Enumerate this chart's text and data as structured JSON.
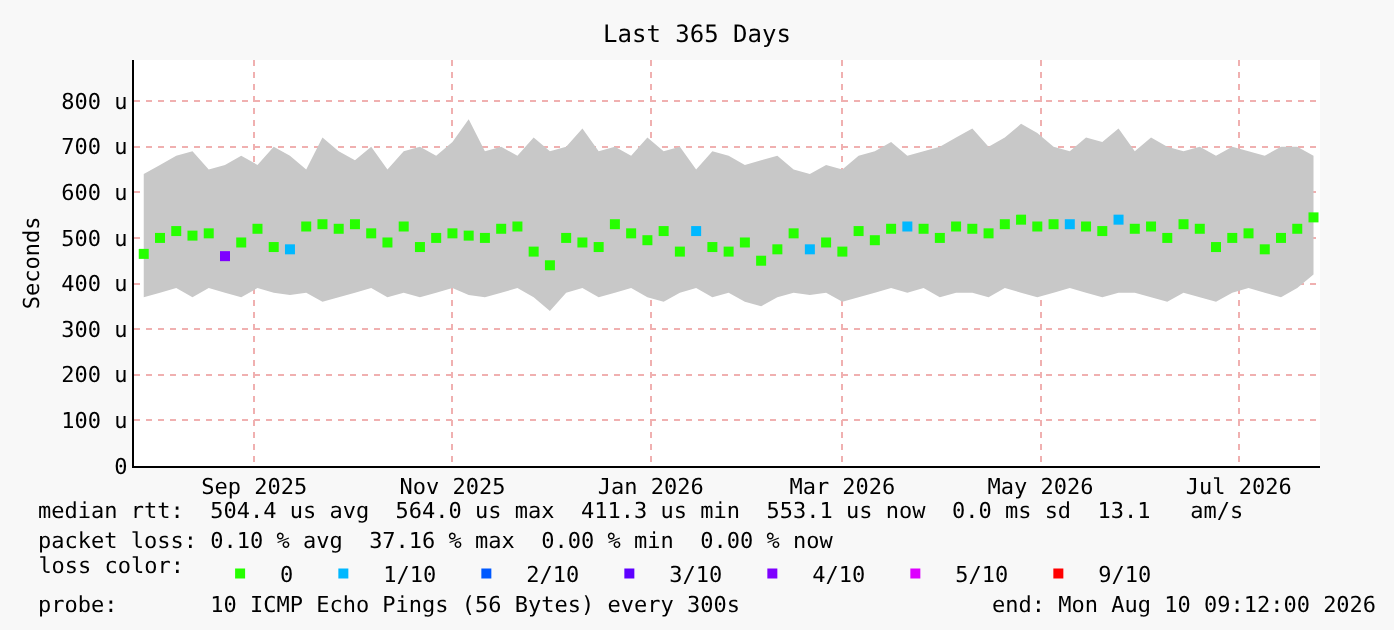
{
  "chart_data": {
    "type": "scatter",
    "title": "Last 365 Days",
    "ylabel": "Seconds",
    "x": [
      "2025-08-13",
      "2025-08-18",
      "2025-08-23",
      "2025-08-28",
      "2025-09-02",
      "2025-09-07",
      "2025-09-12",
      "2025-09-17",
      "2025-09-22",
      "2025-09-27",
      "2025-10-02",
      "2025-10-07",
      "2025-10-12",
      "2025-10-17",
      "2025-10-22",
      "2025-10-27",
      "2025-11-01",
      "2025-11-06",
      "2025-11-11",
      "2025-11-16",
      "2025-11-21",
      "2025-11-26",
      "2025-12-01",
      "2025-12-06",
      "2025-12-11",
      "2025-12-16",
      "2025-12-21",
      "2025-12-26",
      "2025-12-31",
      "2026-01-05",
      "2026-01-10",
      "2026-01-15",
      "2026-01-20",
      "2026-01-25",
      "2026-01-30",
      "2026-02-04",
      "2026-02-09",
      "2026-02-14",
      "2026-02-19",
      "2026-02-24",
      "2026-03-01",
      "2026-03-06",
      "2026-03-11",
      "2026-03-16",
      "2026-03-21",
      "2026-03-26",
      "2026-03-31",
      "2026-04-05",
      "2026-04-10",
      "2026-04-15",
      "2026-04-20",
      "2026-04-25",
      "2026-04-30",
      "2026-05-05",
      "2026-05-10",
      "2026-05-15",
      "2026-05-20",
      "2026-05-25",
      "2026-05-30",
      "2026-06-04",
      "2026-06-09",
      "2026-06-14",
      "2026-06-19",
      "2026-06-24",
      "2026-06-29",
      "2026-07-04",
      "2026-07-09",
      "2026-07-14",
      "2026-07-19",
      "2026-07-24",
      "2026-07-29",
      "2026-08-03",
      "2026-08-08"
    ],
    "series": [
      {
        "color": "#26ff00",
        "values": [
          465,
          500,
          515,
          505,
          510,
          460,
          490,
          520,
          480,
          475,
          525,
          530,
          520,
          530,
          510,
          490,
          525,
          480,
          500,
          510,
          505,
          500,
          520,
          525,
          470,
          440,
          500,
          490,
          480,
          530,
          510,
          495,
          515,
          470,
          515,
          480,
          470,
          490,
          450,
          475,
          510,
          475,
          490,
          470,
          515,
          495,
          520,
          525,
          520,
          500,
          525,
          520,
          510,
          530,
          540,
          525,
          530,
          530,
          525,
          515,
          540,
          520,
          525,
          500,
          530,
          520,
          480,
          500,
          510,
          475,
          500,
          520,
          545
        ],
        "colors": [
          "#26ff00",
          "#26ff00",
          "#26ff00",
          "#26ff00",
          "#26ff00",
          "#7e00ff",
          "#26ff00",
          "#26ff00",
          "#26ff00",
          "#00b8ff",
          "#26ff00",
          "#26ff00",
          "#26ff00",
          "#26ff00",
          "#26ff00",
          "#26ff00",
          "#26ff00",
          "#26ff00",
          "#26ff00",
          "#26ff00",
          "#26ff00",
          "#26ff00",
          "#26ff00",
          "#26ff00",
          "#26ff00",
          "#26ff00",
          "#26ff00",
          "#26ff00",
          "#26ff00",
          "#26ff00",
          "#26ff00",
          "#26ff00",
          "#26ff00",
          "#26ff00",
          "#00b8ff",
          "#26ff00",
          "#26ff00",
          "#26ff00",
          "#26ff00",
          "#26ff00",
          "#26ff00",
          "#00b8ff",
          "#26ff00",
          "#26ff00",
          "#26ff00",
          "#26ff00",
          "#26ff00",
          "#00b8ff",
          "#26ff00",
          "#26ff00",
          "#26ff00",
          "#26ff00",
          "#26ff00",
          "#26ff00",
          "#26ff00",
          "#26ff00",
          "#26ff00",
          "#00b8ff",
          "#26ff00",
          "#26ff00",
          "#00b8ff",
          "#26ff00",
          "#26ff00",
          "#26ff00",
          "#26ff00",
          "#26ff00",
          "#26ff00",
          "#26ff00",
          "#26ff00",
          "#26ff00",
          "#26ff00",
          "#26ff00",
          "#26ff00"
        ],
        "lower": [
          370,
          380,
          390,
          370,
          390,
          380,
          370,
          390,
          380,
          375,
          380,
          360,
          370,
          380,
          390,
          370,
          380,
          370,
          380,
          390,
          375,
          370,
          380,
          390,
          370,
          340,
          380,
          390,
          370,
          380,
          390,
          370,
          360,
          380,
          390,
          370,
          380,
          360,
          350,
          370,
          380,
          375,
          380,
          360,
          370,
          380,
          390,
          380,
          390,
          370,
          380,
          380,
          370,
          390,
          380,
          370,
          380,
          390,
          380,
          370,
          380,
          380,
          370,
          360,
          380,
          370,
          360,
          380,
          390,
          380,
          370,
          390,
          420
        ],
        "upper": [
          640,
          660,
          680,
          690,
          650,
          660,
          680,
          660,
          700,
          680,
          650,
          720,
          690,
          670,
          700,
          650,
          690,
          700,
          680,
          710,
          760,
          690,
          700,
          680,
          720,
          690,
          700,
          740,
          690,
          700,
          680,
          720,
          690,
          700,
          650,
          690,
          680,
          660,
          670,
          680,
          650,
          640,
          660,
          650,
          680,
          690,
          710,
          680,
          690,
          700,
          720,
          740,
          700,
          720,
          750,
          730,
          700,
          690,
          720,
          710,
          740,
          690,
          720,
          700,
          690,
          700,
          680,
          700,
          690,
          680,
          700,
          700,
          680
        ]
      },
      {
        "name": "0",
        "color": "#26ff00",
        "values": [
          null,
          null,
          null,
          null,
          null,
          null,
          null,
          null,
          null,
          null,
          null,
          null,
          null,
          null,
          null,
          null,
          null,
          null,
          null,
          null,
          null,
          null,
          null,
          null,
          null,
          null,
          null,
          null,
          null,
          null,
          null,
          null,
          null,
          null,
          null,
          null,
          null,
          null,
          null,
          null,
          null,
          null,
          null,
          null,
          null,
          null,
          null,
          null,
          null,
          null,
          null,
          null,
          null,
          null,
          null,
          null,
          null,
          null,
          null,
          null,
          null,
          null,
          null,
          null,
          null,
          null,
          null,
          null,
          null,
          null,
          null,
          null,
          null
        ]
      },
      {
        "name": "1/10",
        "color": "#00b8ff",
        "values": [
          null,
          null,
          null,
          null,
          null,
          null,
          null,
          null,
          null,
          null,
          null,
          null,
          null,
          null,
          null,
          null,
          null,
          null,
          null,
          null,
          null,
          null,
          null,
          null,
          null,
          null,
          null,
          null,
          null,
          null,
          null,
          null,
          null,
          null,
          null,
          null,
          null,
          null,
          null,
          null,
          null,
          null,
          null,
          null,
          null,
          null,
          null,
          null,
          null,
          null,
          null,
          null,
          null,
          null,
          null,
          null,
          null,
          null,
          null,
          null,
          null,
          null,
          null,
          null,
          null,
          null,
          null,
          null,
          null,
          null,
          null,
          null,
          null
        ]
      },
      {
        "name": "2/10",
        "color": "#0059ff",
        "values": [
          null,
          null,
          null,
          null,
          null,
          null,
          null,
          null,
          null,
          null,
          null,
          null,
          null,
          null,
          null,
          null,
          null,
          null,
          null,
          null,
          null,
          null,
          null,
          null,
          null,
          null,
          null,
          null,
          null,
          null,
          null,
          null,
          null,
          null,
          null,
          null,
          null,
          null,
          null,
          null,
          null,
          null,
          null,
          null,
          null,
          null,
          null,
          null,
          null,
          null,
          null,
          null,
          null,
          null,
          null,
          null,
          null,
          null,
          null,
          null,
          null,
          null,
          null,
          null,
          null,
          null,
          null,
          null,
          null,
          null,
          null,
          null,
          null
        ]
      },
      {
        "name": "3/10",
        "color": "#5e00ff",
        "values": [
          null,
          null,
          null,
          null,
          null,
          null,
          null,
          null,
          null,
          null,
          null,
          null,
          null,
          null,
          null,
          null,
          null,
          null,
          null,
          null,
          null,
          null,
          null,
          null,
          null,
          null,
          null,
          null,
          null,
          null,
          null,
          null,
          null,
          null,
          null,
          null,
          null,
          null,
          null,
          null,
          null,
          null,
          null,
          null,
          null,
          null,
          null,
          null,
          null,
          null,
          null,
          null,
          null,
          null,
          null,
          null,
          null,
          null,
          null,
          null,
          null,
          null,
          null,
          null,
          null,
          null,
          null,
          null,
          null,
          null,
          null,
          null,
          null
        ]
      },
      {
        "name": "4/10",
        "color": "#7e00ff",
        "values": [
          null,
          null,
          null,
          null,
          null,
          null,
          null,
          null,
          null,
          null,
          null,
          null,
          null,
          null,
          null,
          null,
          null,
          null,
          null,
          null,
          null,
          null,
          null,
          null,
          null,
          null,
          null,
          null,
          null,
          null,
          null,
          null,
          null,
          null,
          null,
          null,
          null,
          null,
          null,
          null,
          null,
          null,
          null,
          null,
          null,
          null,
          null,
          null,
          null,
          null,
          null,
          null,
          null,
          null,
          null,
          null,
          null,
          null,
          null,
          null,
          null,
          null,
          null,
          null,
          null,
          null,
          null,
          null,
          null,
          null,
          null,
          null,
          null
        ]
      },
      {
        "name": "5/10",
        "color": "#dd00ff",
        "values": [
          null,
          null,
          null,
          null,
          null,
          null,
          null,
          null,
          null,
          null,
          null,
          null,
          null,
          null,
          null,
          null,
          null,
          null,
          null,
          null,
          null,
          null,
          null,
          null,
          null,
          null,
          null,
          null,
          null,
          null,
          null,
          null,
          null,
          null,
          null,
          null,
          null,
          null,
          null,
          null,
          null,
          null,
          null,
          null,
          null,
          null,
          null,
          null,
          null,
          null,
          null,
          null,
          null,
          null,
          null,
          null,
          null,
          null,
          null,
          null,
          null,
          null,
          null,
          null,
          null,
          null,
          null,
          null,
          null,
          null,
          null,
          null,
          null
        ]
      },
      {
        "name": "9/10",
        "color": "#ff0000",
        "values": [
          null,
          null,
          null,
          null,
          null,
          null,
          null,
          null,
          null,
          null,
          null,
          null,
          null,
          null,
          null,
          null,
          null,
          null,
          null,
          null,
          null,
          null,
          null,
          null,
          null,
          null,
          null,
          null,
          null,
          null,
          null,
          null,
          null,
          null,
          null,
          null,
          null,
          null,
          null,
          null,
          null,
          null,
          null,
          null,
          null,
          null,
          null,
          null,
          null,
          null,
          null,
          null,
          null,
          null,
          null,
          null,
          null,
          null,
          null,
          null,
          null,
          null,
          null,
          null,
          null,
          null,
          null,
          null,
          null,
          null,
          null,
          null,
          null
        ]
      }
    ],
    "legend_title": "loss color:",
    "legend": "bottom",
    "marker": "square",
    "grid": true,
    "xlim": [
      "2025-08-10",
      "2026-08-10"
    ],
    "xticks": [
      {
        "value": "2025-09-16",
        "label": "Sep 2025"
      },
      {
        "value": "2025-11-16",
        "label": "Nov 2025"
      },
      {
        "value": "2026-01-16",
        "label": "Jan 2026"
      },
      {
        "value": "2026-03-16",
        "label": "Mar 2026"
      },
      {
        "value": "2026-05-16",
        "label": "May 2026"
      },
      {
        "value": "2026-07-16",
        "label": "Jul 2026"
      }
    ],
    "ylim": [
      0,
      890
    ],
    "yticks": [
      0,
      {
        "value": 100,
        "label": "100 u"
      },
      {
        "value": 200,
        "label": "200 u"
      },
      {
        "value": 300,
        "label": "300 u"
      },
      {
        "value": 400,
        "label": "400 u"
      },
      {
        "value": 500,
        "label": "500 u"
      },
      {
        "value": 600,
        "label": "600 u"
      },
      {
        "value": 700,
        "label": "700 u"
      },
      {
        "value": 800,
        "label": "800 u"
      }
    ],
    "annotations": [
      "median rtt:  504.4 us avg  564.0 us max  411.3 us min  553.1 us now  0.0 ms sd  13.1   am/s",
      "packet loss: 0.10 % avg  37.16 % max  0.00 % min  0.00 % now",
      "probe:       10 ICMP Echo Pings (56 Bytes) every 300s",
      "end: Mon Aug 10 09:12:00 2026"
    ]
  }
}
